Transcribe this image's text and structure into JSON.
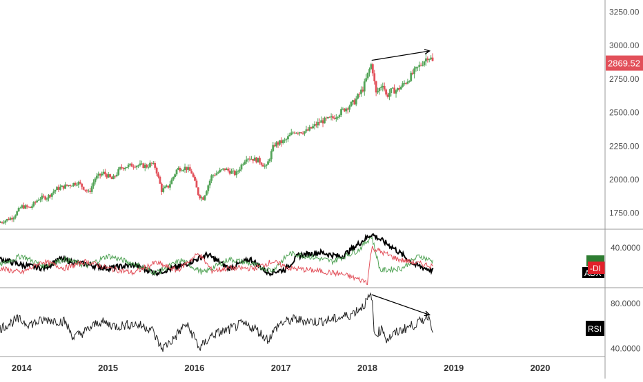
{
  "chart_data": [
    {
      "type": "candlestick",
      "name_on_chart": "",
      "y_axis_ticks": [
        "3250.00",
        "3000.00",
        "2750.00",
        "2500.00",
        "2250.00",
        "2000.00",
        "1750.00"
      ],
      "ylim": [
        1630,
        3340
      ],
      "xlim": [
        2013.75,
        2020.75
      ],
      "last_price_label": "2869.52",
      "colors": {
        "up": "#53a458",
        "down": "#e2505a",
        "price_badge": "#e2505a"
      },
      "anchor_closes": [
        [
          2013.75,
          1680
        ],
        [
          2013.9,
          1720
        ],
        [
          2014.0,
          1800
        ],
        [
          2014.1,
          1790
        ],
        [
          2014.2,
          1860
        ],
        [
          2014.3,
          1870
        ],
        [
          2014.4,
          1930
        ],
        [
          2014.55,
          1960
        ],
        [
          2014.65,
          1980
        ],
        [
          2014.78,
          1900
        ],
        [
          2014.85,
          2010
        ],
        [
          2014.95,
          2050
        ],
        [
          2015.05,
          2000
        ],
        [
          2015.15,
          2090
        ],
        [
          2015.3,
          2110
        ],
        [
          2015.45,
          2100
        ],
        [
          2015.5,
          2120
        ],
        [
          2015.55,
          2090
        ],
        [
          2015.62,
          1920
        ],
        [
          2015.7,
          1950
        ],
        [
          2015.8,
          2080
        ],
        [
          2015.9,
          2090
        ],
        [
          2015.97,
          2050
        ],
        [
          2016.05,
          1880
        ],
        [
          2016.1,
          1860
        ],
        [
          2016.2,
          2030
        ],
        [
          2016.35,
          2080
        ],
        [
          2016.48,
          2040
        ],
        [
          2016.6,
          2170
        ],
        [
          2016.75,
          2140
        ],
        [
          2016.83,
          2090
        ],
        [
          2016.92,
          2260
        ],
        [
          2017.05,
          2290
        ],
        [
          2017.15,
          2360
        ],
        [
          2017.3,
          2360
        ],
        [
          2017.45,
          2430
        ],
        [
          2017.6,
          2460
        ],
        [
          2017.7,
          2510
        ],
        [
          2017.85,
          2580
        ],
        [
          2017.95,
          2680
        ],
        [
          2018.05,
          2870
        ],
        [
          2018.1,
          2640
        ],
        [
          2018.18,
          2720
        ],
        [
          2018.22,
          2620
        ],
        [
          2018.27,
          2660
        ],
        [
          2018.35,
          2670
        ],
        [
          2018.45,
          2730
        ],
        [
          2018.55,
          2810
        ],
        [
          2018.62,
          2860
        ],
        [
          2018.7,
          2920
        ],
        [
          2018.74,
          2900
        ],
        [
          2018.76,
          2870
        ]
      ],
      "trend_arrow": {
        "from": [
          2018.05,
          2890
        ],
        "to": [
          2018.72,
          2960
        ]
      }
    },
    {
      "type": "line",
      "indicator": "DMI / ADX",
      "y_axis_ticks": [
        "40.0000"
      ],
      "ylim": [
        5,
        55
      ],
      "legend": [
        "-DI",
        "ADX"
      ],
      "series": [
        {
          "name": "ADX",
          "color": "#000000",
          "anchors": [
            [
              2013.75,
              30
            ],
            [
              2014.0,
              25
            ],
            [
              2014.25,
              22
            ],
            [
              2014.45,
              30
            ],
            [
              2014.7,
              26
            ],
            [
              2015.0,
              22
            ],
            [
              2015.3,
              25
            ],
            [
              2015.55,
              18
            ],
            [
              2015.85,
              24
            ],
            [
              2016.15,
              34
            ],
            [
              2016.4,
              22
            ],
            [
              2016.65,
              30
            ],
            [
              2016.85,
              18
            ],
            [
              2017.05,
              21
            ],
            [
              2017.2,
              33
            ],
            [
              2017.45,
              36
            ],
            [
              2017.7,
              32
            ],
            [
              2018.05,
              52
            ],
            [
              2018.3,
              40
            ],
            [
              2018.55,
              25
            ],
            [
              2018.76,
              20
            ]
          ]
        },
        {
          "name": "+DI",
          "color": "#53a458",
          "anchors": [
            [
              2013.75,
              25
            ],
            [
              2014.0,
              33
            ],
            [
              2014.25,
              24
            ],
            [
              2014.5,
              30
            ],
            [
              2014.75,
              24
            ],
            [
              2015.0,
              33
            ],
            [
              2015.3,
              26
            ],
            [
              2015.55,
              18
            ],
            [
              2015.85,
              29
            ],
            [
              2016.1,
              18
            ],
            [
              2016.4,
              30
            ],
            [
              2016.6,
              27
            ],
            [
              2016.9,
              20
            ],
            [
              2017.1,
              35
            ],
            [
              2017.35,
              32
            ],
            [
              2017.6,
              28
            ],
            [
              2017.9,
              38
            ],
            [
              2018.05,
              50
            ],
            [
              2018.15,
              20
            ],
            [
              2018.4,
              22
            ],
            [
              2018.6,
              33
            ],
            [
              2018.76,
              28
            ]
          ]
        },
        {
          "name": "-DI",
          "color": "#e2505a",
          "anchors": [
            [
              2013.75,
              22
            ],
            [
              2014.0,
              18
            ],
            [
              2014.25,
              28
            ],
            [
              2014.5,
              22
            ],
            [
              2014.75,
              28
            ],
            [
              2015.0,
              22
            ],
            [
              2015.3,
              18
            ],
            [
              2015.55,
              27
            ],
            [
              2015.8,
              20
            ],
            [
              2016.05,
              35
            ],
            [
              2016.2,
              20
            ],
            [
              2016.4,
              22
            ],
            [
              2016.7,
              22
            ],
            [
              2016.9,
              28
            ],
            [
              2017.1,
              22
            ],
            [
              2017.4,
              20
            ],
            [
              2017.7,
              17
            ],
            [
              2018.0,
              10
            ],
            [
              2018.05,
              40
            ],
            [
              2018.35,
              30
            ],
            [
              2018.6,
              26
            ],
            [
              2018.76,
              24
            ]
          ]
        }
      ]
    },
    {
      "type": "line",
      "indicator": "RSI",
      "y_axis_ticks": [
        "80.0000",
        "40.0000"
      ],
      "ylim": [
        33,
        93
      ],
      "legend": [
        "RSI"
      ],
      "series": [
        {
          "name": "RSI",
          "color": "#222222",
          "anchors": [
            [
              2013.75,
              58
            ],
            [
              2013.95,
              66
            ],
            [
              2014.1,
              62
            ],
            [
              2014.3,
              66
            ],
            [
              2014.5,
              64
            ],
            [
              2014.6,
              50
            ],
            [
              2014.75,
              56
            ],
            [
              2014.9,
              64
            ],
            [
              2015.1,
              60
            ],
            [
              2015.3,
              62
            ],
            [
              2015.5,
              58
            ],
            [
              2015.62,
              40
            ],
            [
              2015.75,
              48
            ],
            [
              2015.9,
              62
            ],
            [
              2016.0,
              50
            ],
            [
              2016.06,
              40
            ],
            [
              2016.2,
              52
            ],
            [
              2016.4,
              57
            ],
            [
              2016.55,
              62
            ],
            [
              2016.7,
              58
            ],
            [
              2016.85,
              48
            ],
            [
              2016.98,
              62
            ],
            [
              2017.15,
              66
            ],
            [
              2017.4,
              64
            ],
            [
              2017.6,
              66
            ],
            [
              2017.8,
              70
            ],
            [
              2017.95,
              78
            ],
            [
              2018.05,
              88
            ],
            [
              2018.08,
              52
            ],
            [
              2018.18,
              58
            ],
            [
              2018.22,
              48
            ],
            [
              2018.35,
              55
            ],
            [
              2018.5,
              60
            ],
            [
              2018.62,
              64
            ],
            [
              2018.7,
              70
            ],
            [
              2018.76,
              58
            ]
          ]
        }
      ],
      "trend_arrow": {
        "from": [
          2018.05,
          88
        ],
        "to": [
          2018.72,
          70
        ]
      }
    }
  ],
  "x_axis_ticks": [
    {
      "label": "2014",
      "value": 2014
    },
    {
      "label": "2015",
      "value": 2015
    },
    {
      "label": "2016",
      "value": 2016
    },
    {
      "label": "2017",
      "value": 2017
    },
    {
      "label": "2018",
      "value": 2018
    },
    {
      "label": "2019",
      "value": 2019
    },
    {
      "label": "2020",
      "value": 2020
    }
  ]
}
